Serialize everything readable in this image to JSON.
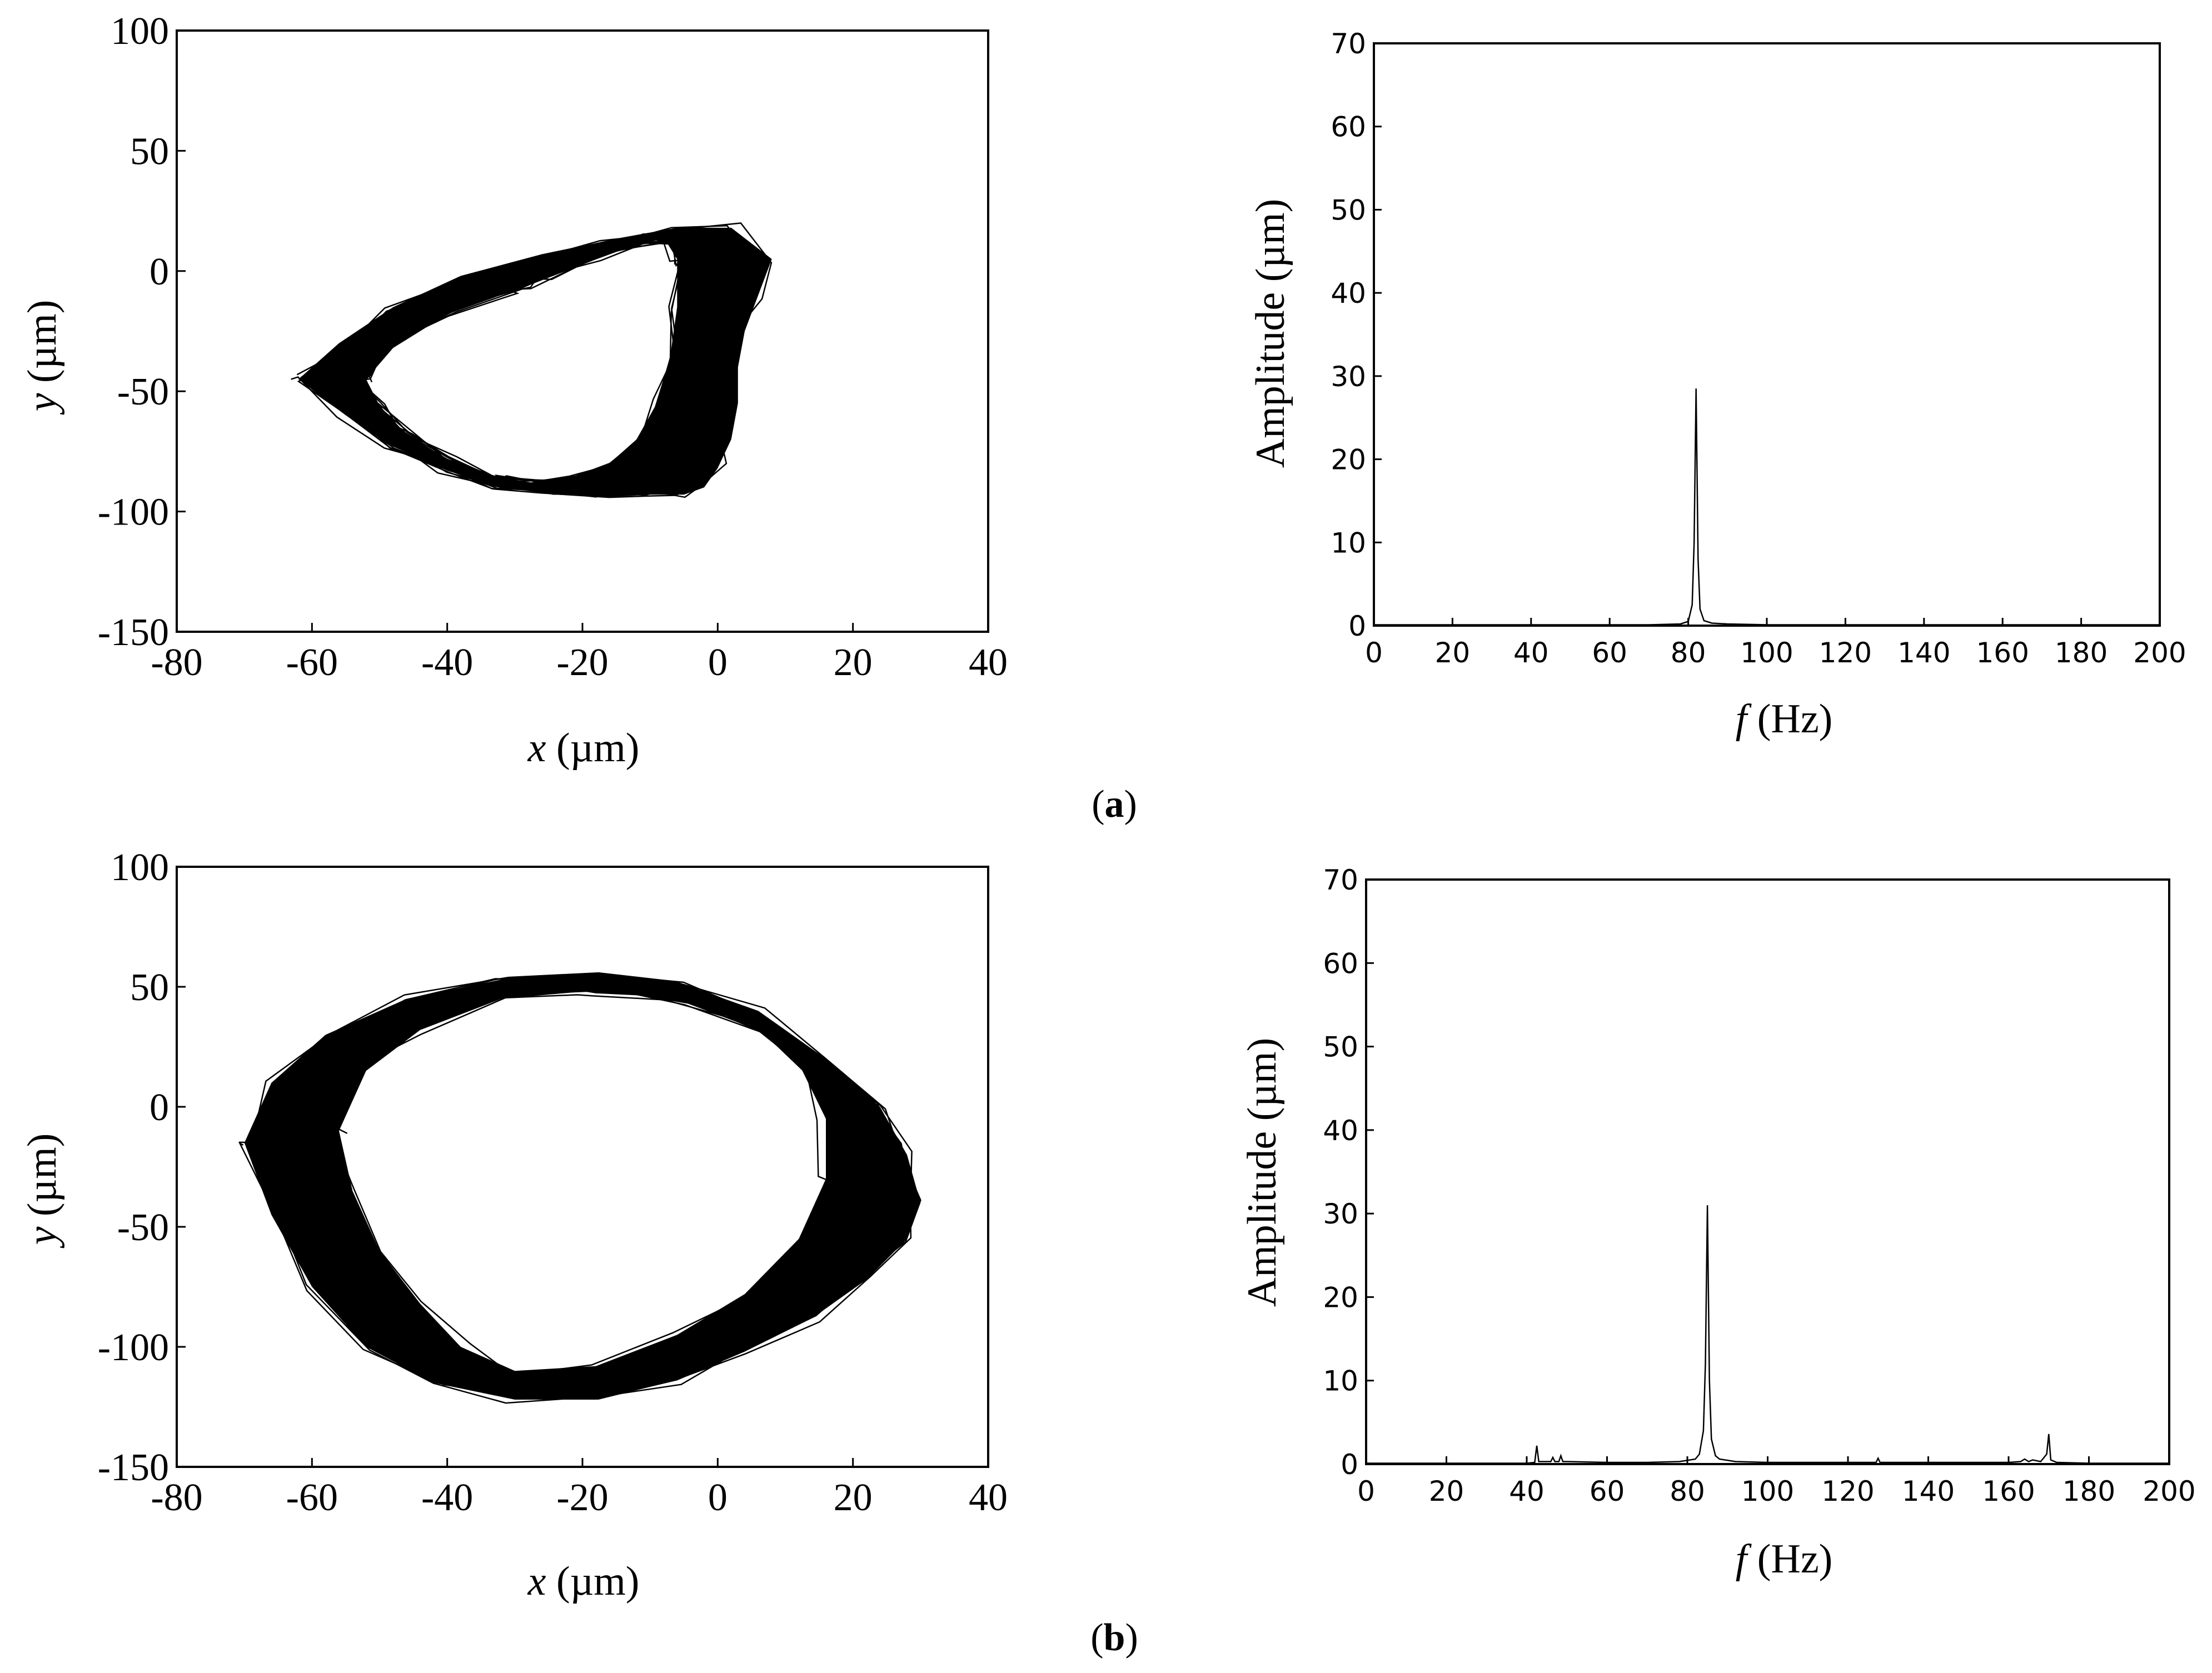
{
  "captions": {
    "a": "(a)",
    "b": "(b)"
  },
  "caption_letters": {
    "a": "a",
    "b": "b"
  },
  "chart_data": [
    {
      "id": "a-orbit",
      "panel": "a",
      "type": "line",
      "xlabel_var": "x",
      "xlabel_unit": " (µm)",
      "ylabel_var": "y",
      "ylabel_unit": " (µm)",
      "xlim": [
        -80,
        40
      ],
      "ylim": [
        -150,
        100
      ],
      "xticks": [
        -80,
        -60,
        -40,
        -20,
        0,
        20,
        40
      ],
      "yticks": [
        -150,
        -100,
        -50,
        0,
        50,
        100
      ],
      "grid": false,
      "orbit": {
        "mean_outline_x": [
          -62,
          -56,
          -48,
          -38,
          -26,
          -14,
          -6,
          2,
          8,
          6,
          4,
          3,
          3,
          2,
          0,
          -2,
          -5,
          -10,
          -16,
          -24,
          -32,
          -40,
          -48,
          -55,
          -62
        ],
        "mean_outline_y": [
          -45,
          -30,
          -15,
          -2,
          7,
          14,
          18,
          18,
          5,
          -10,
          -25,
          -40,
          -55,
          -70,
          -82,
          -90,
          -93,
          -93,
          -94,
          -93,
          -90,
          -83,
          -73,
          -60,
          -45
        ],
        "inner_outline_x": [
          -52,
          -48,
          -40,
          -30,
          -20,
          -12,
          -8,
          -6,
          -6,
          -7,
          -9,
          -12,
          -16,
          -22,
          -28,
          -34,
          -40,
          -46,
          -50,
          -52
        ],
        "inner_outline_y": [
          -45,
          -32,
          -18,
          -8,
          3,
          12,
          14,
          5,
          -15,
          -35,
          -55,
          -70,
          -80,
          -86,
          -88,
          -85,
          -78,
          -68,
          -56,
          -45
        ],
        "description_scale": "band of repeated loops"
      }
    },
    {
      "id": "a-spectrum",
      "panel": "a",
      "type": "line",
      "xlabel_var": "f",
      "xlabel_unit": " (Hz)",
      "ylabel": "Amplitude (µm)",
      "xlim": [
        0,
        200
      ],
      "ylim": [
        0,
        70
      ],
      "xticks": [
        0,
        20,
        40,
        60,
        80,
        100,
        120,
        140,
        160,
        180,
        200
      ],
      "yticks": [
        0,
        10,
        20,
        30,
        40,
        50,
        60,
        70
      ],
      "grid": false,
      "series": [
        {
          "x": [
            0,
            20,
            40,
            60,
            70,
            78,
            80,
            81,
            81.5,
            82,
            82.5,
            83,
            84,
            86,
            90,
            100,
            120,
            140,
            160,
            180,
            200
          ],
          "y": [
            0.1,
            0.1,
            0.1,
            0.1,
            0.1,
            0.2,
            0.5,
            2.5,
            10,
            28.5,
            8,
            2,
            0.6,
            0.3,
            0.2,
            0.1,
            0.1,
            0.1,
            0.1,
            0.1,
            0.1
          ]
        }
      ]
    },
    {
      "id": "b-orbit",
      "panel": "b",
      "type": "line",
      "xlabel_var": "x",
      "xlabel_unit": " (µm)",
      "ylabel_var": "y",
      "ylabel_unit": " (µm)",
      "xlim": [
        -80,
        40
      ],
      "ylim": [
        -150,
        100
      ],
      "xticks": [
        -80,
        -60,
        -40,
        -20,
        0,
        20,
        40
      ],
      "yticks": [
        -150,
        -100,
        -50,
        0,
        50,
        100
      ],
      "grid": false,
      "orbit": {
        "mean_outline_x": [
          -70,
          -66,
          -58,
          -46,
          -32,
          -18,
          -6,
          6,
          16,
          24,
          28,
          30,
          28,
          22,
          14,
          4,
          -6,
          -18,
          -30,
          -42,
          -52,
          -60,
          -66,
          -70
        ],
        "mean_outline_y": [
          -15,
          10,
          30,
          45,
          53,
          55,
          52,
          40,
          20,
          0,
          -20,
          -40,
          -55,
          -72,
          -88,
          -102,
          -114,
          -122,
          -122,
          -115,
          -100,
          -75,
          -45,
          -15
        ],
        "inner_outline_x": [
          -56,
          -52,
          -44,
          -32,
          -20,
          -8,
          4,
          12,
          16,
          16,
          12,
          4,
          -6,
          -18,
          -30,
          -38,
          -44,
          -50,
          -54,
          -56
        ],
        "inner_outline_y": [
          -10,
          15,
          32,
          45,
          48,
          46,
          36,
          18,
          -5,
          -30,
          -55,
          -78,
          -95,
          -108,
          -110,
          -100,
          -82,
          -60,
          -35,
          -10
        ],
        "description_scale": "band of repeated loops"
      }
    },
    {
      "id": "b-spectrum",
      "panel": "b",
      "type": "line",
      "xlabel_var": "f",
      "xlabel_unit": " (Hz)",
      "ylabel": "Amplitude (µm)",
      "xlim": [
        0,
        200
      ],
      "ylim": [
        0,
        70
      ],
      "xticks": [
        0,
        20,
        40,
        60,
        80,
        100,
        120,
        140,
        160,
        180,
        200
      ],
      "yticks": [
        0,
        10,
        20,
        30,
        40,
        50,
        60,
        70
      ],
      "grid": false,
      "series": [
        {
          "x": [
            0,
            20,
            40,
            42,
            42.5,
            43,
            44,
            46,
            46.5,
            47,
            48,
            48.5,
            49,
            50,
            60,
            70,
            78,
            82,
            83,
            84,
            84.5,
            85,
            85.5,
            86,
            87,
            88,
            92,
            100,
            110,
            120,
            127,
            127.5,
            128,
            140,
            160,
            163,
            164,
            165,
            166,
            168,
            169.5,
            170,
            170.5,
            172,
            180,
            200
          ],
          "y": [
            0.1,
            0.1,
            0.1,
            0.2,
            2.2,
            0.3,
            0.3,
            0.3,
            0.8,
            0.3,
            0.3,
            1.0,
            0.3,
            0.3,
            0.2,
            0.2,
            0.3,
            0.6,
            1.2,
            4,
            12,
            31,
            10,
            3,
            1.0,
            0.6,
            0.3,
            0.2,
            0.2,
            0.2,
            0.2,
            0.7,
            0.2,
            0.2,
            0.2,
            0.3,
            0.6,
            0.3,
            0.5,
            0.3,
            1.2,
            3.6,
            0.5,
            0.2,
            0.1,
            0.1
          ]
        }
      ]
    }
  ]
}
